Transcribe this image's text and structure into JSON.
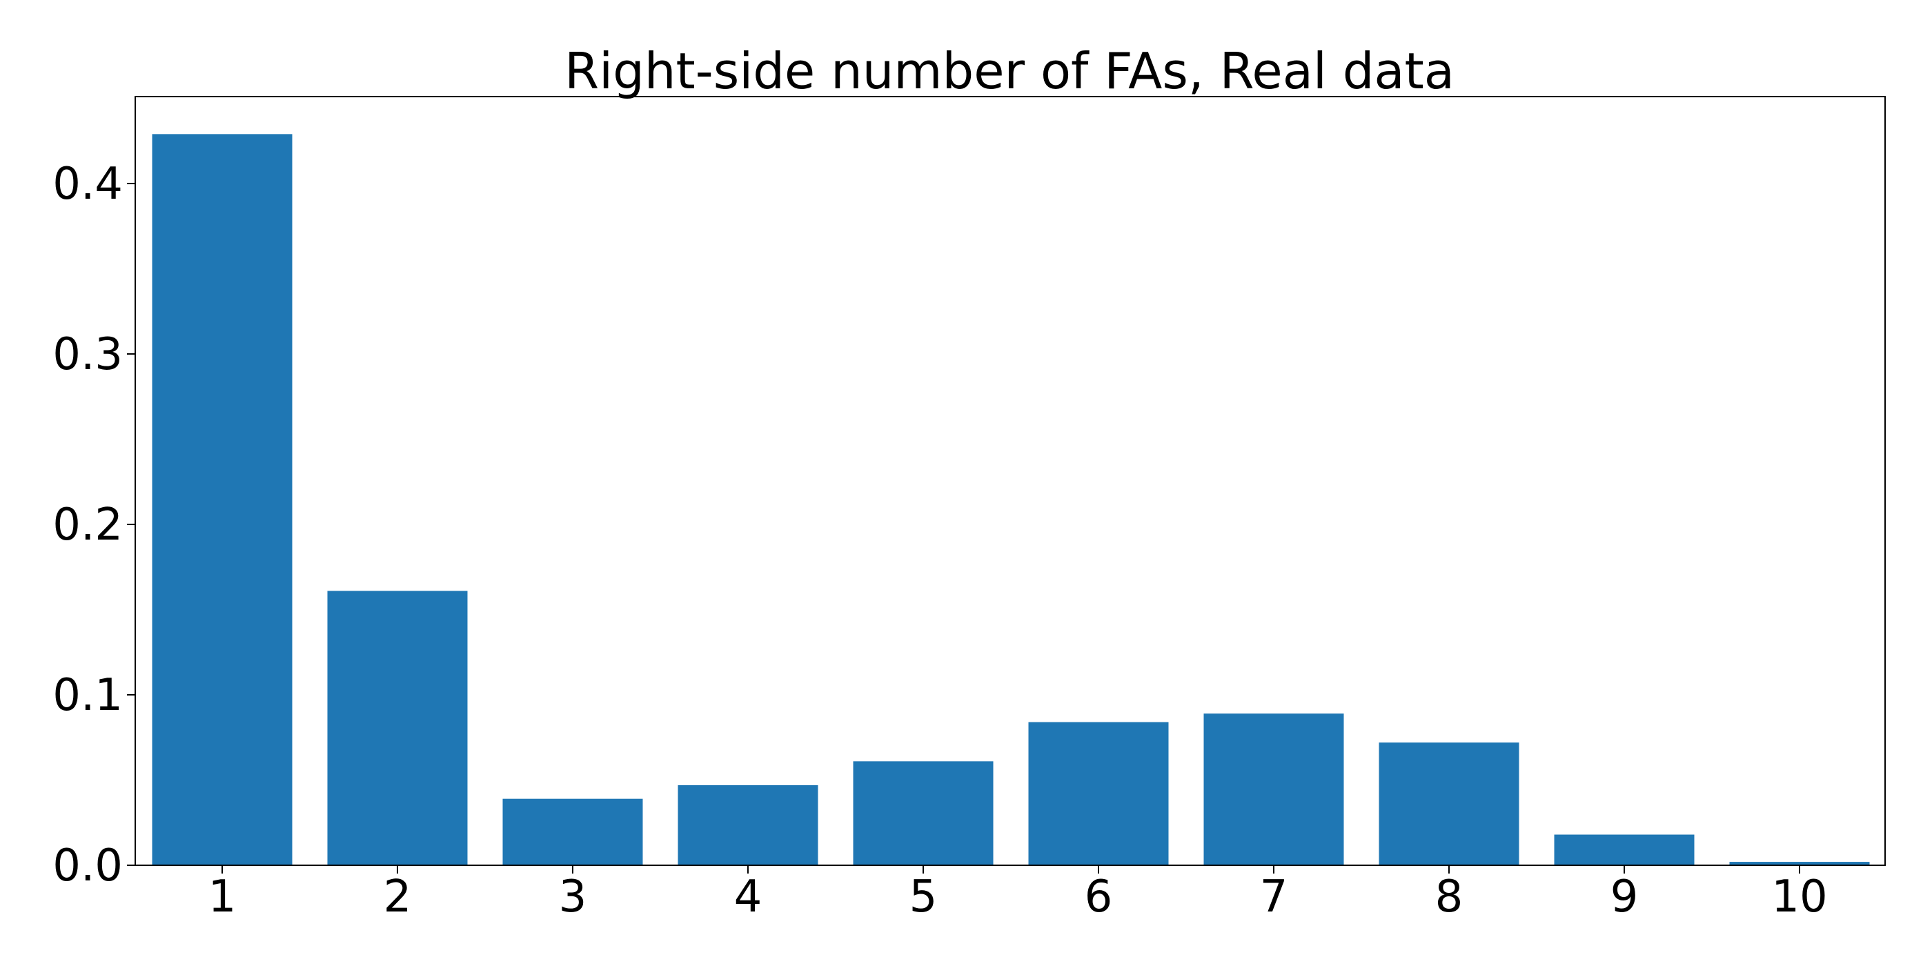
{
  "chart_data": {
    "type": "bar",
    "title": "Right-side number of FAs, Real data",
    "xlabel": "",
    "ylabel": "",
    "categories": [
      "1",
      "2",
      "3",
      "4",
      "5",
      "6",
      "7",
      "8",
      "9",
      "10"
    ],
    "values": [
      0.429,
      0.161,
      0.039,
      0.047,
      0.061,
      0.084,
      0.089,
      0.072,
      0.018,
      0.002
    ],
    "ylim": [
      0,
      0.451
    ],
    "yticks": [
      "0.0",
      "0.1",
      "0.2",
      "0.3",
      "0.4"
    ],
    "grid": false,
    "bar_color": "#1f77b4"
  }
}
